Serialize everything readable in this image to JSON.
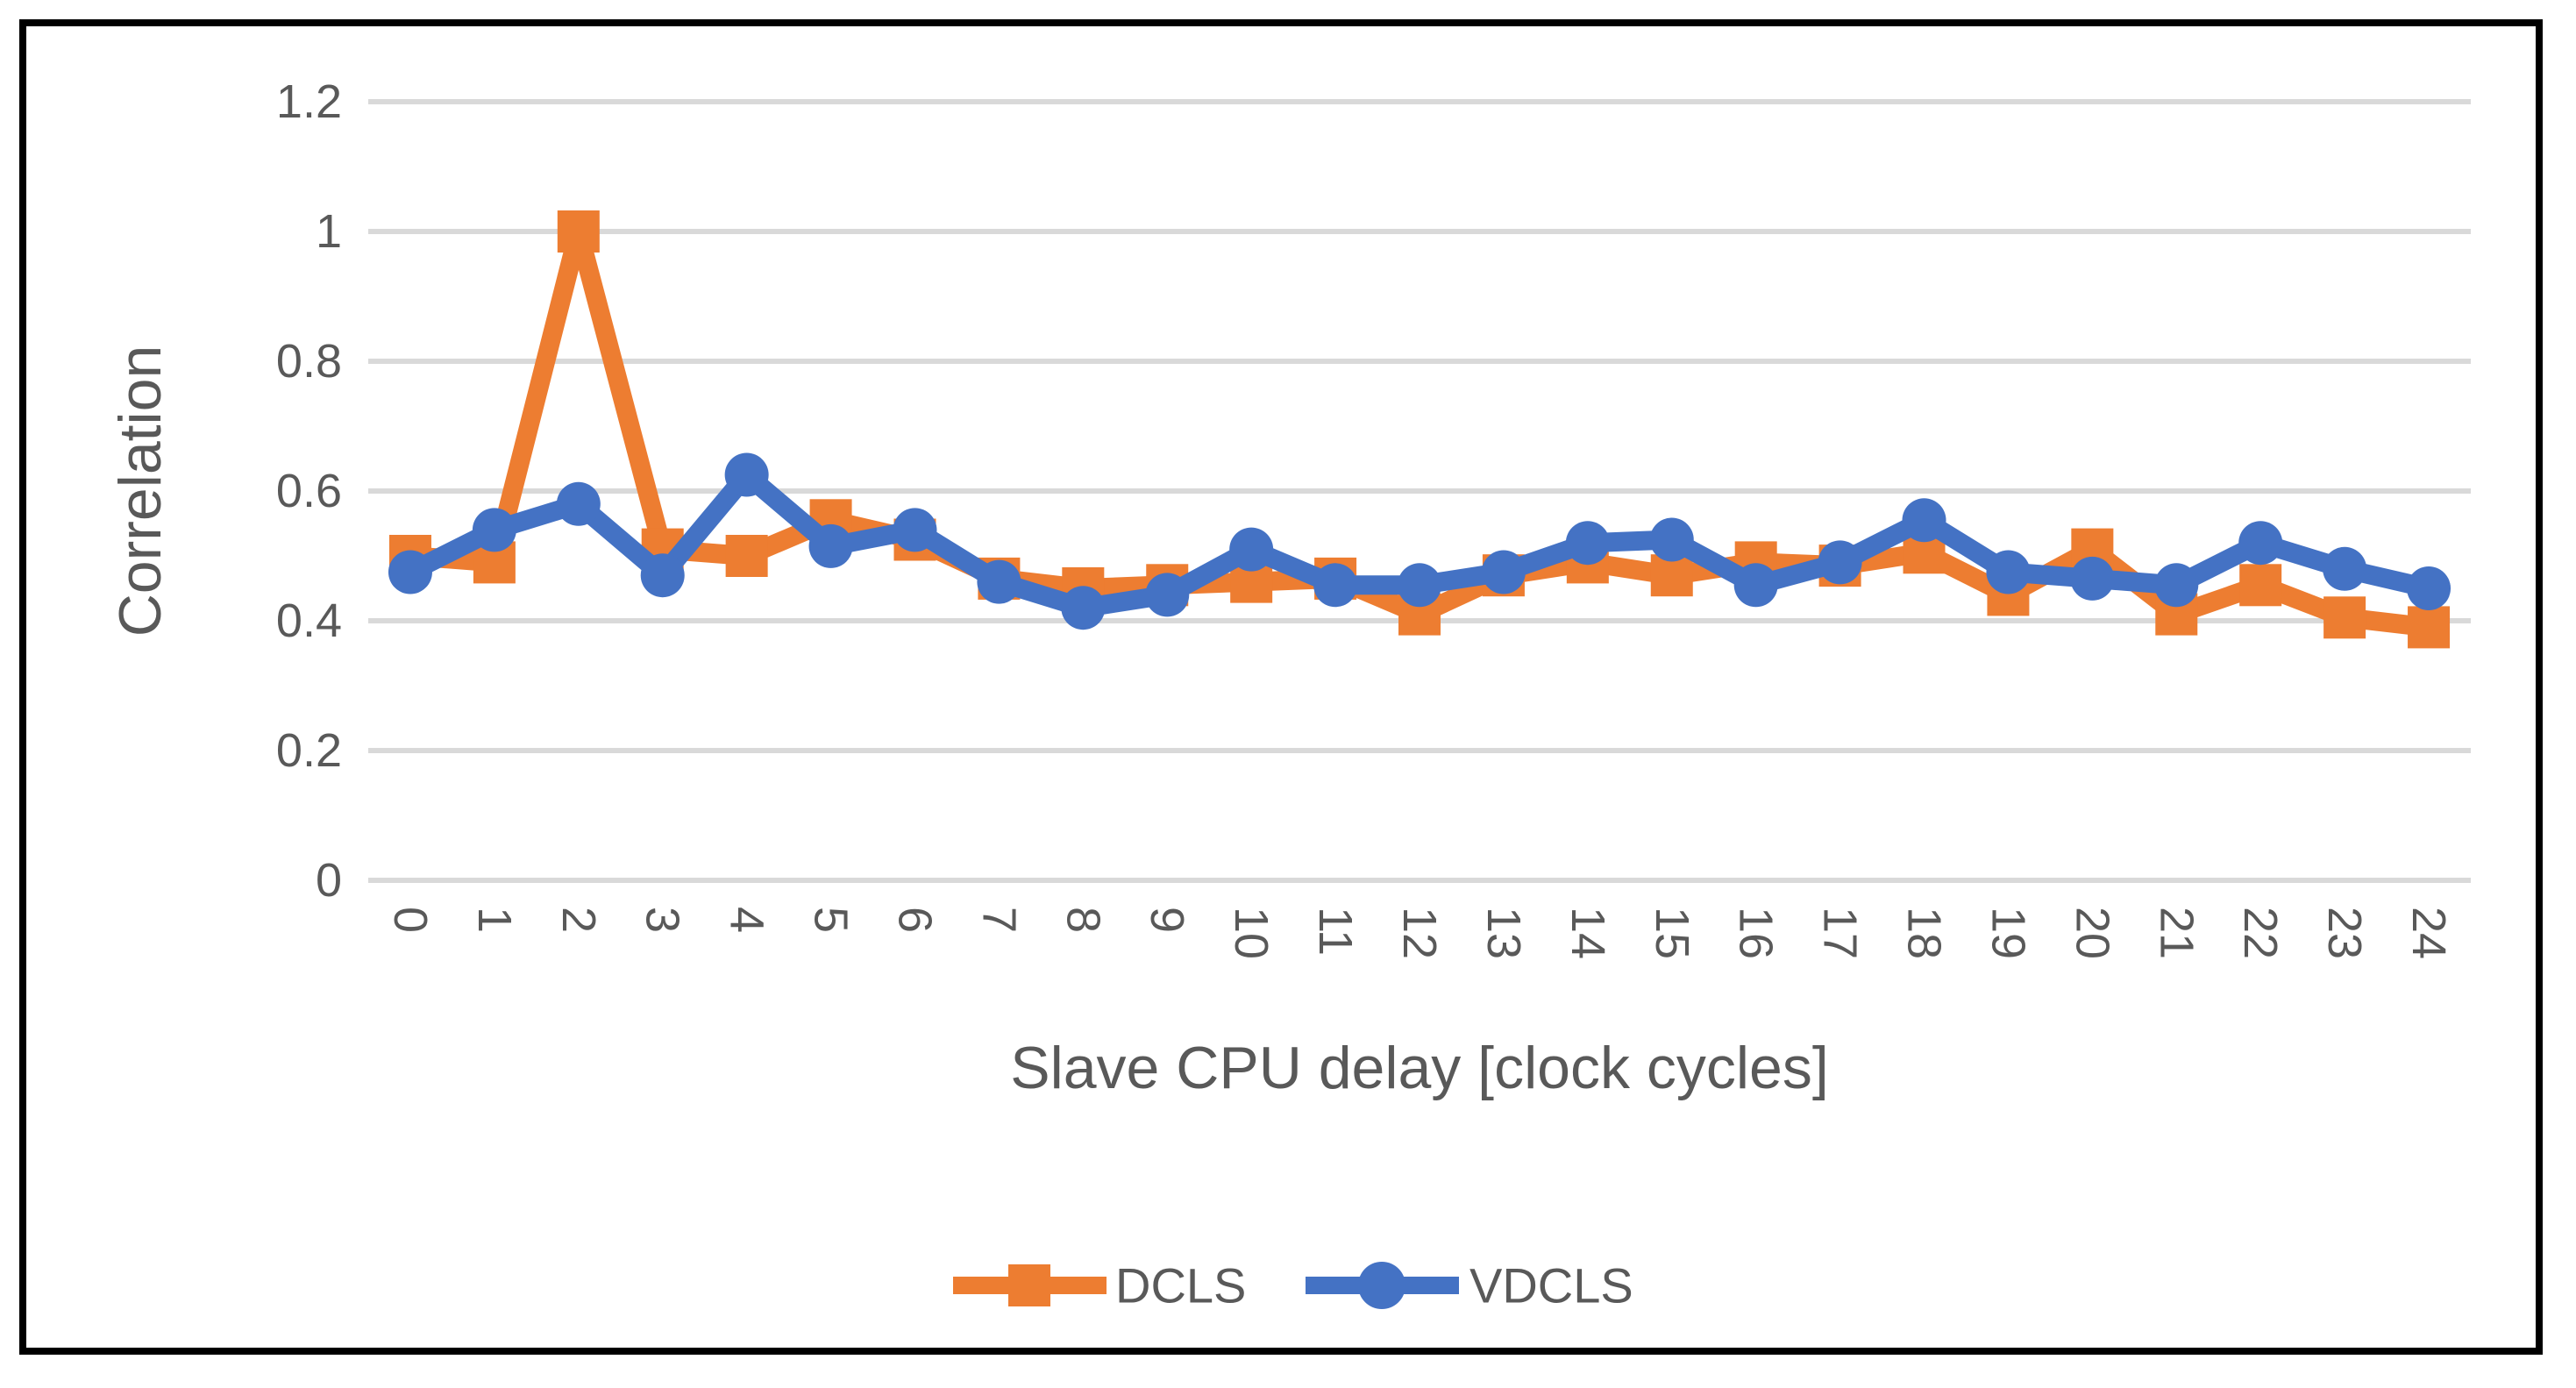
{
  "figure": {
    "background_color": "#FFFFFF",
    "border_color": "#000000",
    "text_color": "#595959",
    "gridline_color": "#D9D9D9"
  },
  "chart_data": {
    "type": "line",
    "title": "",
    "xlabel": "Slave CPU delay [clock cycles]",
    "ylabel": "Correlation",
    "x": [
      0,
      1,
      2,
      3,
      4,
      5,
      6,
      7,
      8,
      9,
      10,
      11,
      12,
      13,
      14,
      15,
      16,
      17,
      18,
      19,
      20,
      21,
      22,
      23,
      24
    ],
    "series": [
      {
        "name": "DCLS",
        "color": "#ED7D31",
        "marker": "square",
        "values": [
          0.5,
          0.49,
          1.0,
          0.51,
          0.5,
          0.555,
          0.525,
          0.465,
          0.45,
          0.455,
          0.46,
          0.465,
          0.41,
          0.47,
          0.49,
          0.47,
          0.49,
          0.485,
          0.505,
          0.44,
          0.51,
          0.41,
          0.455,
          0.405,
          0.39
        ]
      },
      {
        "name": "VDCLS",
        "color": "#4472C4",
        "marker": "circle",
        "values": [
          0.475,
          0.54,
          0.58,
          0.47,
          0.625,
          0.515,
          0.54,
          0.46,
          0.42,
          0.44,
          0.51,
          0.455,
          0.455,
          0.475,
          0.52,
          0.525,
          0.455,
          0.49,
          0.555,
          0.475,
          0.465,
          0.455,
          0.52,
          0.48,
          0.45
        ]
      }
    ],
    "ylim": [
      0,
      1.2
    ],
    "yticks": [
      0,
      0.2,
      0.4,
      0.6,
      0.8,
      1,
      1.2
    ],
    "ytick_labels": [
      "0",
      "0.2",
      "0.4",
      "0.6",
      "0.8",
      "1",
      "1.2"
    ],
    "grid": "horizontal-only",
    "legend_position": "bottom",
    "x_tick_rotation_deg": 90
  }
}
